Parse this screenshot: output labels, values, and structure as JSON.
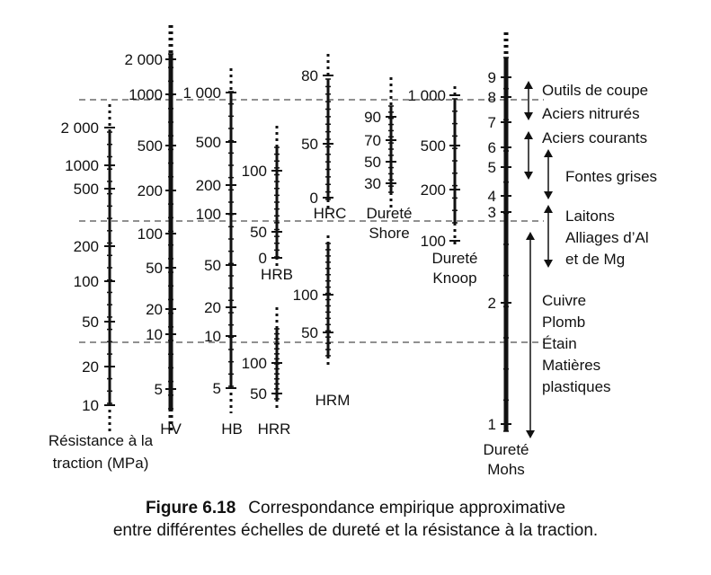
{
  "caption": {
    "figure_number": "Figure 6.18",
    "line1": "Correspondance empirique approximative",
    "line2": "entre différentes échelles de dureté et la résistance à la traction."
  },
  "scales": [
    {
      "id": "traction",
      "name_lines": [
        "Résistance à la",
        "traction (MPa)"
      ],
      "labels": [
        "2 000",
        "1000",
        "500",
        "200",
        "100",
        "50",
        "20",
        "10"
      ]
    },
    {
      "id": "hv",
      "name_lines": [
        "HV"
      ],
      "labels": [
        "2 000",
        "1000",
        "500",
        "200",
        "100",
        "50",
        "20",
        "10",
        "5"
      ]
    },
    {
      "id": "hb",
      "name_lines": [
        "HB"
      ],
      "labels": [
        "1 000",
        "500",
        "200",
        "100",
        "50",
        "20",
        "10",
        "5"
      ]
    },
    {
      "id": "hrb",
      "name_lines": [
        "HRB"
      ],
      "labels": [
        "100",
        "50",
        "0"
      ]
    },
    {
      "id": "hrr",
      "name_lines": [
        "HRR"
      ],
      "labels": [
        "100",
        "50"
      ]
    },
    {
      "id": "hrc",
      "name_lines": [
        "HRC"
      ],
      "labels": [
        "80",
        "50",
        "0"
      ]
    },
    {
      "id": "hrm",
      "name_lines": [
        "HRM"
      ],
      "labels": [
        "100",
        "50"
      ]
    },
    {
      "id": "shore",
      "name_lines": [
        "Dureté",
        "Shore"
      ],
      "labels": [
        "90",
        "70",
        "50",
        "30"
      ]
    },
    {
      "id": "knoop",
      "name_lines": [
        "Dureté",
        "Knoop"
      ],
      "labels": [
        "1 000",
        "500",
        "200",
        "100"
      ]
    },
    {
      "id": "mohs",
      "name_lines": [
        "Dureté",
        "Mohs"
      ],
      "labels": [
        "9",
        "8",
        "7",
        "6",
        "5",
        "4",
        "3",
        "2",
        "1"
      ]
    }
  ],
  "materials": [
    {
      "id": "outils",
      "lines": [
        "Outils de coupe"
      ]
    },
    {
      "id": "nitrures",
      "lines": [
        "Aciers nitrurés"
      ]
    },
    {
      "id": "aciers-courants",
      "lines": [
        "Aciers courants"
      ]
    },
    {
      "id": "fontes",
      "lines": [
        "Fontes grises"
      ]
    },
    {
      "id": "laitons",
      "lines": [
        "Laitons",
        "Alliages d’Al",
        "et de Mg"
      ]
    },
    {
      "id": "metaux-tendres",
      "lines": [
        "Cuivre",
        "Plomb",
        "Étain",
        "Matières",
        "plastiques"
      ]
    }
  ]
}
